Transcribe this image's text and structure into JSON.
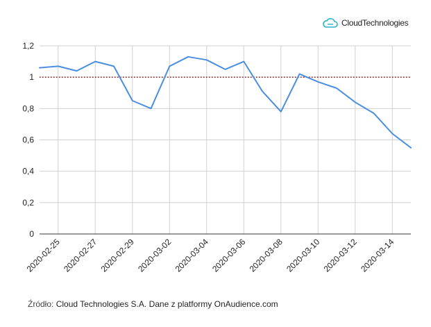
{
  "logo": {
    "text": "CloudTechnologies",
    "icon": "cloud-icon",
    "color": "#2ab3c7"
  },
  "source": {
    "label": "Źródło:",
    "text": "Cloud Technologies S.A. Dane z platformy OnAudience.com"
  },
  "chart_data": {
    "type": "line",
    "title": "",
    "xlabel": "",
    "ylabel": "",
    "ylim": [
      0,
      1.2
    ],
    "yticks": [
      "0",
      "0,2",
      "0,4",
      "0,6",
      "0,8",
      "1",
      "1,2"
    ],
    "x": [
      "2020-02-24",
      "2020-02-25",
      "2020-02-26",
      "2020-02-27",
      "2020-02-28",
      "2020-02-29",
      "2020-03-01",
      "2020-03-02",
      "2020-03-03",
      "2020-03-04",
      "2020-03-05",
      "2020-03-06",
      "2020-03-07",
      "2020-03-08",
      "2020-03-09",
      "2020-03-10",
      "2020-03-11",
      "2020-03-12",
      "2020-03-13",
      "2020-03-14",
      "2020-03-15"
    ],
    "xtick_labels": [
      "2020-02-25",
      "2020-02-27",
      "2020-02-29",
      "2020-03-02",
      "2020-03-04",
      "2020-03-06",
      "2020-03-08",
      "2020-03-10",
      "2020-03-12",
      "2020-03-14"
    ],
    "series": [
      {
        "color": "#4a8ee0",
        "values": [
          1.06,
          1.07,
          1.04,
          1.1,
          1.07,
          0.85,
          0.8,
          1.07,
          1.13,
          1.11,
          1.05,
          1.1,
          0.91,
          0.78,
          1.02,
          0.97,
          0.93,
          0.84,
          0.77,
          0.64,
          0.55
        ]
      }
    ],
    "reference_line": {
      "y": 1,
      "color": "#a01818",
      "style": "dotted"
    },
    "grid": true,
    "legend": "none"
  }
}
